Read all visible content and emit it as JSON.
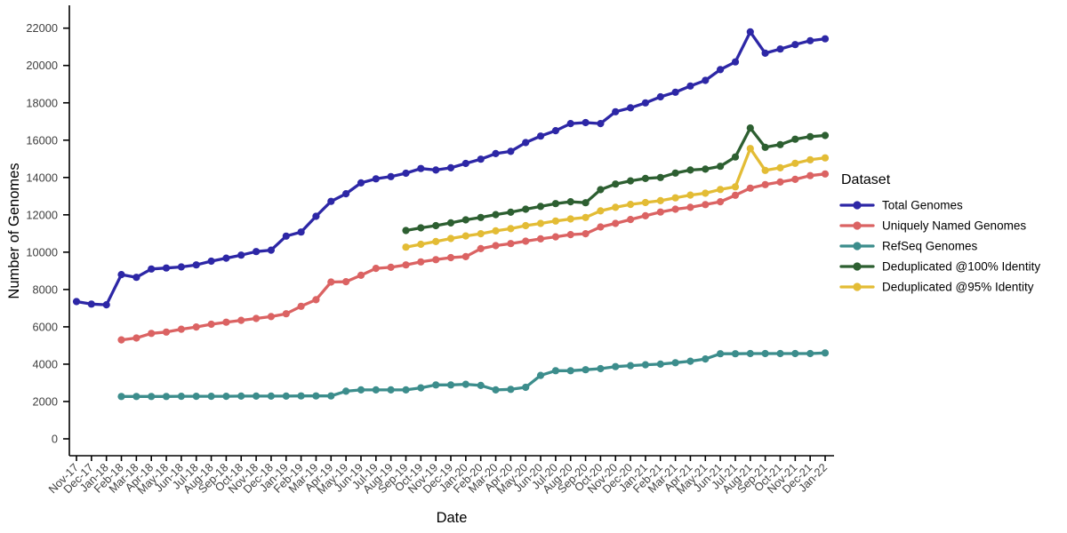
{
  "chart_data": {
    "type": "line",
    "title": "",
    "xlabel": "Date",
    "ylabel": "Number of Genomes",
    "legend_title": "Dataset",
    "legend_position": "right",
    "grid": false,
    "background": "#FFFFFF",
    "axis_color": "#000000",
    "tick_label_color": "#404040",
    "ylim": [
      0,
      22000
    ],
    "ytick_step": 2000,
    "categories": [
      "Nov-17",
      "Dec-17",
      "Jan-18",
      "Feb-18",
      "Mar-18",
      "Apr-18",
      "May-18",
      "Jun-18",
      "Jul-18",
      "Aug-18",
      "Sep-18",
      "Oct-18",
      "Nov-18",
      "Dec-18",
      "Jan-19",
      "Feb-19",
      "Mar-19",
      "Apr-19",
      "May-19",
      "Jun-19",
      "Jul-19",
      "Aug-19",
      "Sep-19",
      "Oct-19",
      "Nov-19",
      "Dec-19",
      "Jan-20",
      "Feb-20",
      "Mar-20",
      "Apr-20",
      "May-20",
      "Jun-20",
      "Jul-20",
      "Aug-20",
      "Sep-20",
      "Oct-20",
      "Nov-20",
      "Dec-20",
      "Jan-21",
      "Feb-21",
      "Mar-21",
      "Apr-21",
      "May-21",
      "Jun-21",
      "Jul-21",
      "Aug-21",
      "Sep-21",
      "Oct-21",
      "Nov-21",
      "Dec-21",
      "Jan-22"
    ],
    "series": [
      {
        "name": "Total Genomes",
        "color": "#2D27A6",
        "values": [
          7350,
          7220,
          7180,
          8800,
          8650,
          9100,
          9150,
          9210,
          9320,
          9520,
          9680,
          9840,
          10030,
          10110,
          10860,
          11080,
          11920,
          12720,
          13130,
          13710,
          13930,
          14050,
          14230,
          14480,
          14400,
          14520,
          14750,
          14980,
          15280,
          15400,
          15870,
          16220,
          16510,
          16890,
          16940,
          16890,
          17520,
          17730,
          18000,
          18320,
          18570,
          18900,
          19200,
          19780,
          20190,
          21800,
          20660,
          20880,
          21120,
          21330,
          21430
        ]
      },
      {
        "name": "Uniquely Named Genomes",
        "color": "#DB6363",
        "values": [
          null,
          null,
          null,
          5300,
          5400,
          5650,
          5720,
          5870,
          5990,
          6140,
          6250,
          6350,
          6450,
          6550,
          6700,
          7100,
          7450,
          8400,
          8420,
          8760,
          9130,
          9190,
          9320,
          9480,
          9600,
          9710,
          9760,
          10190,
          10350,
          10460,
          10590,
          10710,
          10820,
          10940,
          10990,
          11350,
          11540,
          11750,
          11950,
          12150,
          12300,
          12400,
          12550,
          12700,
          13050,
          13430,
          13620,
          13760,
          13900,
          14100,
          14190
        ]
      },
      {
        "name": "RefSeq Genomes",
        "color": "#3C8D8C",
        "values": [
          null,
          null,
          null,
          2270,
          2270,
          2270,
          2270,
          2280,
          2280,
          2280,
          2280,
          2290,
          2290,
          2290,
          2290,
          2300,
          2300,
          2300,
          2550,
          2620,
          2620,
          2620,
          2620,
          2730,
          2890,
          2890,
          2920,
          2860,
          2620,
          2650,
          2760,
          3400,
          3650,
          3650,
          3700,
          3760,
          3870,
          3920,
          3970,
          4000,
          4080,
          4160,
          4280,
          4560,
          4560,
          4570,
          4570,
          4570,
          4570,
          4570,
          4600
        ]
      },
      {
        "name": "Deduplicated @100% Identity",
        "color": "#2D5F31",
        "values": [
          null,
          null,
          null,
          null,
          null,
          null,
          null,
          null,
          null,
          null,
          null,
          null,
          null,
          null,
          null,
          null,
          null,
          null,
          null,
          null,
          null,
          null,
          11160,
          11300,
          11420,
          11570,
          11730,
          11860,
          12010,
          12140,
          12300,
          12450,
          12600,
          12700,
          12650,
          13350,
          13650,
          13820,
          13950,
          14000,
          14240,
          14400,
          14450,
          14600,
          15100,
          16650,
          15620,
          15760,
          16050,
          16190,
          16250
        ]
      },
      {
        "name": "Deduplicated @95% Identity",
        "color": "#E3BC35",
        "values": [
          null,
          null,
          null,
          null,
          null,
          null,
          null,
          null,
          null,
          null,
          null,
          null,
          null,
          null,
          null,
          null,
          null,
          null,
          null,
          null,
          null,
          null,
          10270,
          10420,
          10570,
          10730,
          10870,
          10990,
          11140,
          11260,
          11420,
          11540,
          11670,
          11780,
          11860,
          12210,
          12400,
          12560,
          12660,
          12760,
          12910,
          13060,
          13160,
          13360,
          13500,
          15550,
          14380,
          14520,
          14760,
          14950,
          15050
        ]
      }
    ]
  }
}
